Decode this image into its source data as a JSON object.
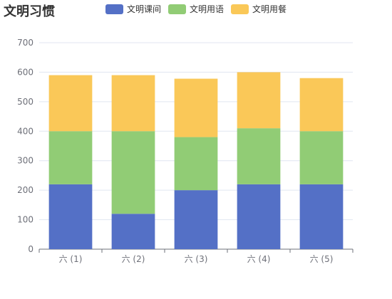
{
  "chart_data": {
    "type": "bar",
    "stacked": true,
    "title": "文明习惯",
    "categories": [
      "六 (1)",
      "六 (2)",
      "六 (3)",
      "六 (4)",
      "六 (5)"
    ],
    "series": [
      {
        "name": "文明课间",
        "color": "#5470c6",
        "values": [
          220,
          120,
          200,
          220,
          220
        ]
      },
      {
        "name": "文明用语",
        "color": "#91cc75",
        "values": [
          180,
          280,
          180,
          190,
          180
        ]
      },
      {
        "name": "文明用餐",
        "color": "#fac858",
        "values": [
          190,
          190,
          198,
          190,
          180
        ]
      }
    ],
    "ylim": [
      0,
      700
    ],
    "yticks": [
      0,
      100,
      200,
      300,
      400,
      500,
      600,
      700
    ],
    "grid": true,
    "legend": "top"
  }
}
